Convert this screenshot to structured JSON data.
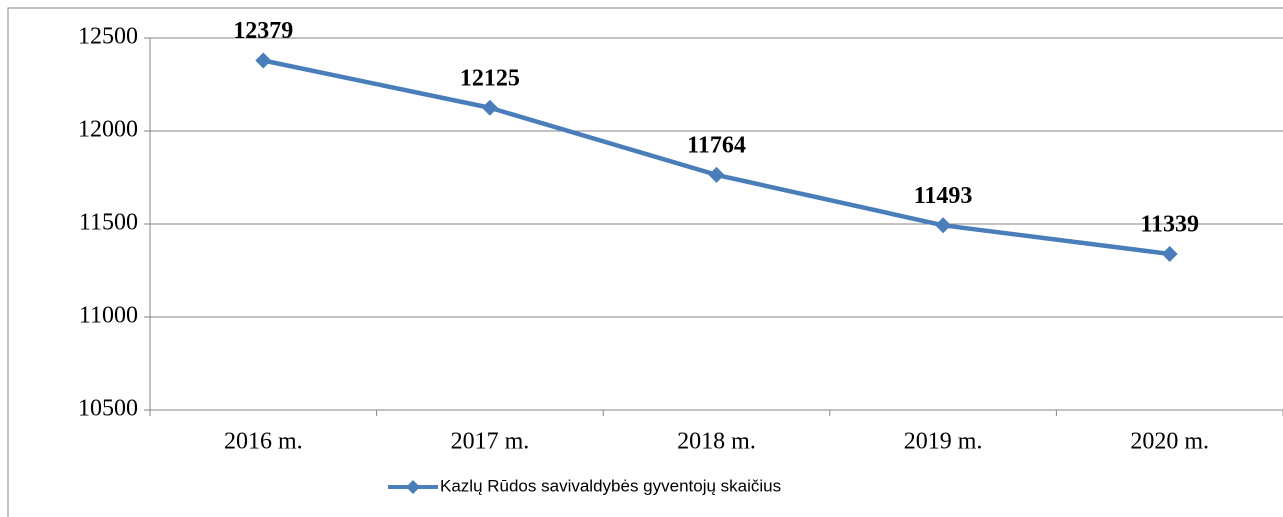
{
  "chart_data": {
    "type": "line",
    "categories": [
      "2016 m.",
      "2017 m.",
      "2018 m.",
      "2019 m.",
      "2020 m."
    ],
    "series": [
      {
        "name": "Kazlų Rūdos savivaldybės gyventojų skaičius",
        "color": "#4a7ebb",
        "values": [
          12379,
          12125,
          11764,
          11493,
          11339
        ]
      }
    ],
    "ylim": [
      10500,
      12500
    ],
    "yticks": [
      10500,
      11000,
      11500,
      12000,
      12500
    ],
    "grid": true,
    "legend": "bottom"
  }
}
